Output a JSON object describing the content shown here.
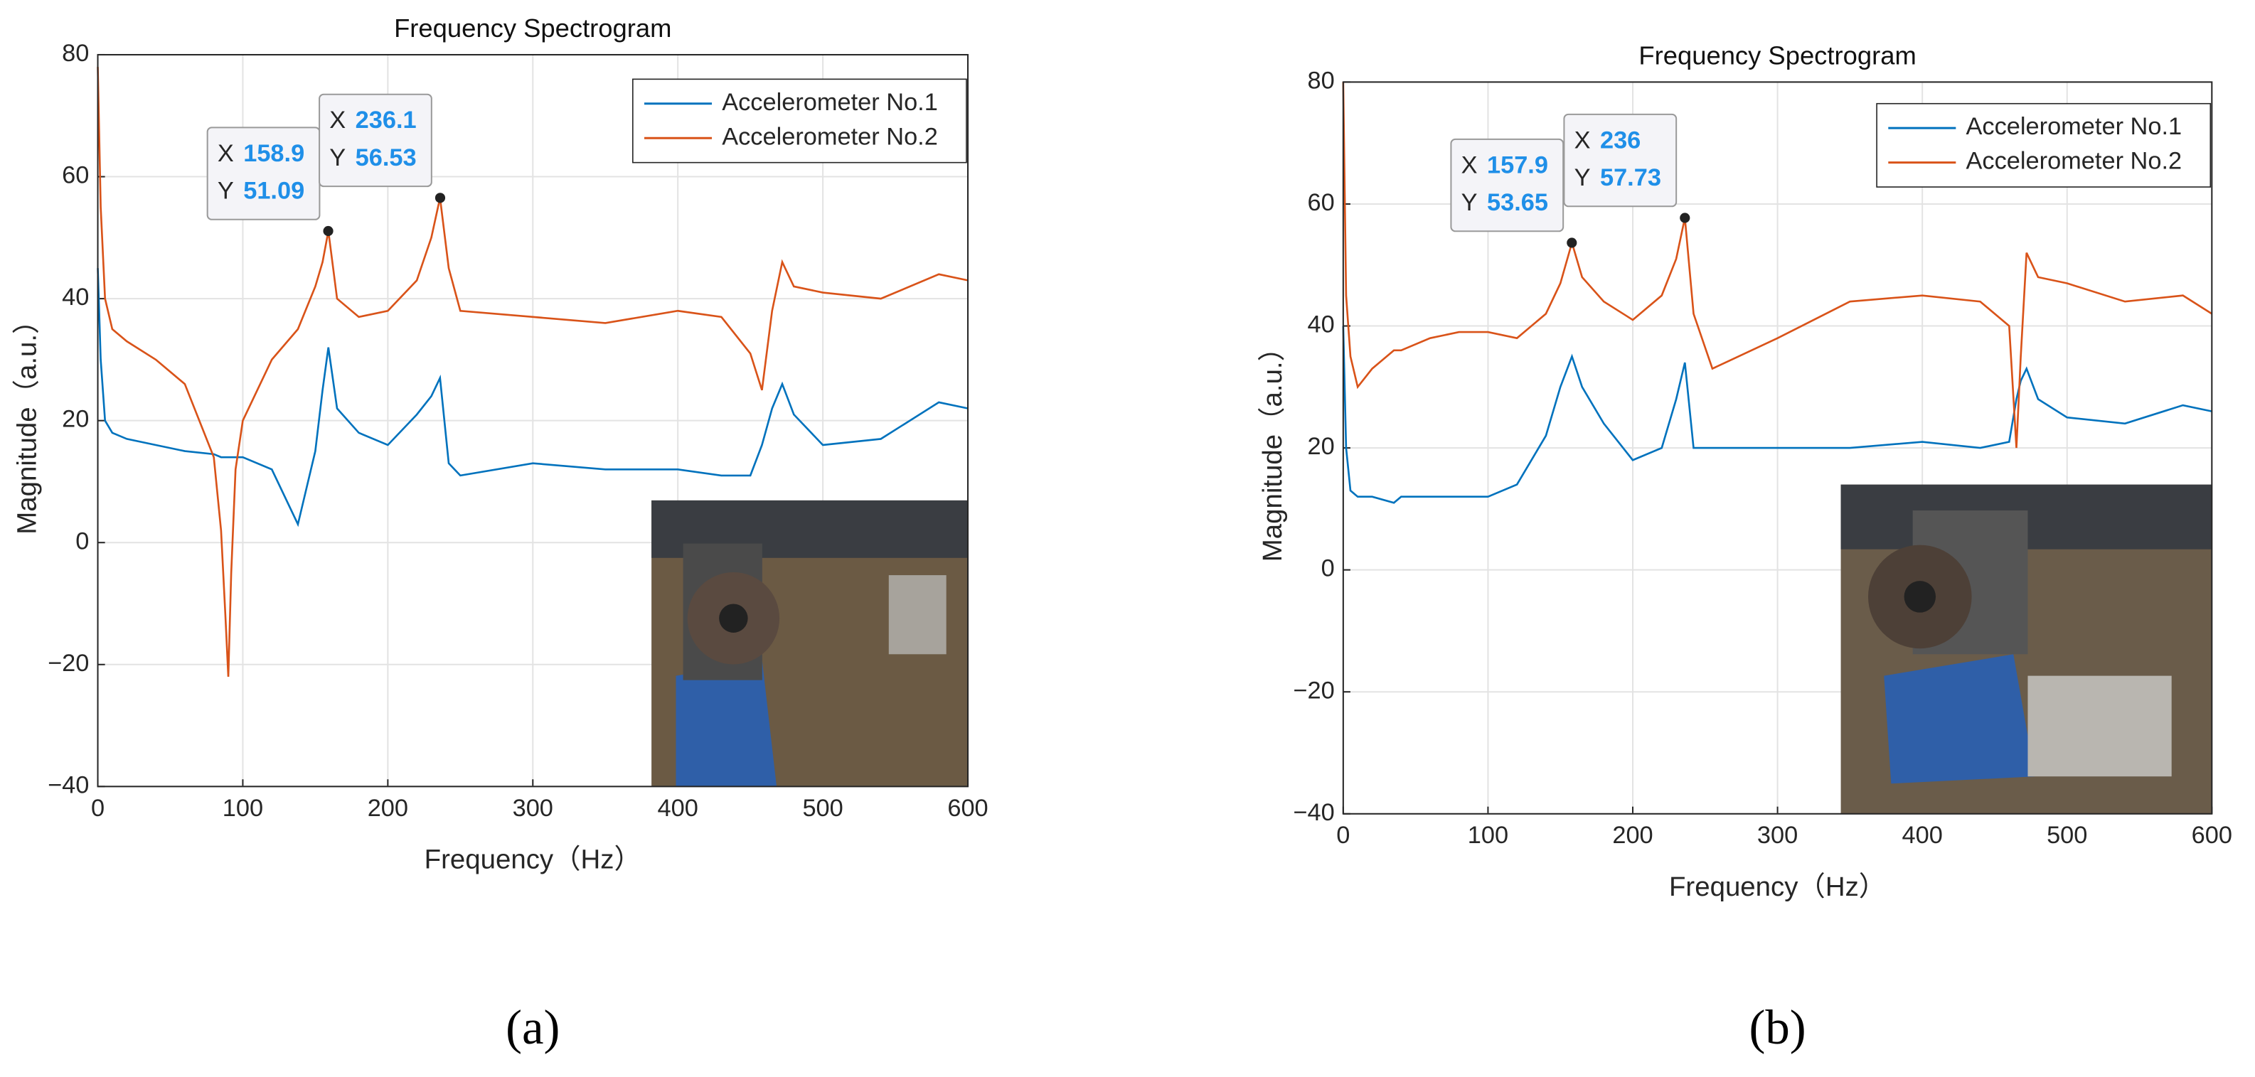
{
  "chart_data": [
    {
      "type": "line",
      "title": "Frequency Spectrogram",
      "x_label": "Frequency（Hz）",
      "y_label": "Magnitude（a.u.）",
      "caption": "(a)",
      "xlim": [
        0,
        600
      ],
      "ylim": [
        -40,
        80
      ],
      "xticks": [
        0,
        100,
        200,
        300,
        400,
        500,
        600
      ],
      "yticks": [
        {
          "value": -40,
          "label": "−40"
        },
        {
          "value": -20,
          "label": "−20"
        },
        0,
        20,
        40,
        60,
        80
      ],
      "grid": true,
      "legend": "upper right",
      "x": [
        0,
        2,
        5,
        10,
        20,
        40,
        60,
        80,
        85,
        88,
        90,
        92,
        95,
        100,
        120,
        138,
        150,
        155,
        159,
        165,
        180,
        200,
        220,
        230,
        236,
        242,
        250,
        300,
        350,
        400,
        430,
        450,
        458,
        465,
        472,
        480,
        500,
        540,
        580,
        600
      ],
      "series": [
        {
          "name": "Accelerometer No.1",
          "color": "#0072bd",
          "values": [
            45,
            30,
            20,
            18,
            17,
            16,
            15,
            14.5,
            14,
            14,
            14,
            14,
            14,
            14,
            12,
            3,
            15,
            25,
            32,
            22,
            18,
            16,
            21,
            24,
            27,
            13,
            11,
            13,
            12,
            12,
            11,
            11,
            16,
            22,
            26,
            21,
            16,
            17,
            23,
            22
          ]
        },
        {
          "name": "Accelerometer No.2",
          "color": "#d95319",
          "values": [
            78,
            55,
            40,
            35,
            33,
            30,
            26,
            14,
            2,
            -12,
            -22,
            -5,
            12,
            20,
            30,
            35,
            42,
            46,
            51.09,
            40,
            37,
            38,
            43,
            50,
            56.53,
            45,
            38,
            37,
            36,
            38,
            37,
            31,
            25,
            38,
            46,
            42,
            41,
            40,
            44,
            43
          ]
        }
      ],
      "datatips": [
        {
          "x_label": "X",
          "y_label": "Y",
          "x": 158.9,
          "y": 51.09
        },
        {
          "x_label": "X",
          "y_label": "Y",
          "x": 236.1,
          "y": 56.53
        }
      ]
    },
    {
      "type": "line",
      "title": "Frequency Spectrogram",
      "x_label": "Frequency（Hz）",
      "y_label": "Magnitude（a.u.）",
      "caption": "(b)",
      "xlim": [
        0,
        600
      ],
      "ylim": [
        -40,
        80
      ],
      "xticks": [
        0,
        100,
        200,
        300,
        400,
        500,
        600
      ],
      "yticks": [
        {
          "value": -40,
          "label": "−40"
        },
        {
          "value": -20,
          "label": "−20"
        },
        0,
        20,
        40,
        60,
        80
      ],
      "grid": true,
      "legend": "upper right",
      "x": [
        0,
        2,
        5,
        10,
        20,
        35,
        40,
        60,
        80,
        100,
        120,
        140,
        150,
        158,
        165,
        180,
        200,
        220,
        230,
        236,
        242,
        255,
        300,
        350,
        400,
        440,
        460,
        465,
        468,
        472,
        480,
        500,
        540,
        580,
        600
      ],
      "series": [
        {
          "name": "Accelerometer No.1",
          "color": "#0072bd",
          "values": [
            40,
            20,
            13,
            12,
            12,
            11,
            12,
            12,
            12,
            12,
            14,
            22,
            30,
            35,
            30,
            24,
            18,
            20,
            28,
            34,
            20,
            20,
            20,
            20,
            21,
            20,
            21,
            28,
            31,
            33,
            28,
            25,
            24,
            27,
            26
          ]
        },
        {
          "name": "Accelerometer No.2",
          "color": "#d95319",
          "values": [
            80,
            45,
            35,
            30,
            33,
            36,
            36,
            38,
            39,
            39,
            38,
            42,
            47,
            53.65,
            48,
            44,
            41,
            45,
            51,
            57.73,
            42,
            33,
            38,
            44,
            45,
            44,
            40,
            20,
            35,
            52,
            48,
            47,
            44,
            45,
            42
          ]
        }
      ],
      "datatips": [
        {
          "x_label": "X",
          "y_label": "Y",
          "x": 157.9,
          "y": 53.65
        },
        {
          "x_label": "X",
          "y_label": "Y",
          "x": 236,
          "y": 57.73
        }
      ]
    }
  ]
}
